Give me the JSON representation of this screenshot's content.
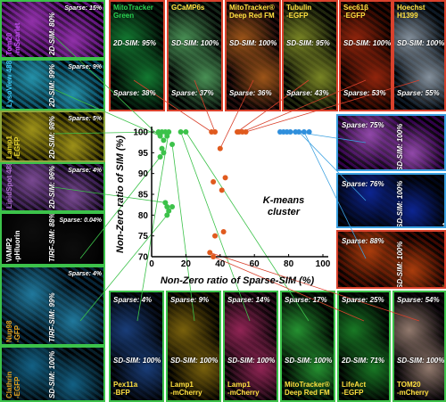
{
  "chart_data": {
    "type": "scatter",
    "xlabel": "Non-Zero ratio of Sparse-SIM (%)",
    "ylabel": "Non-Zero ratio of SIM (%)",
    "xlim": [
      0,
      100
    ],
    "ylim": [
      70,
      100
    ],
    "xticks": [
      "0",
      "20",
      "40",
      "60",
      "80",
      "100"
    ],
    "yticks": [
      "70",
      "75",
      "80",
      "85",
      "90",
      "95",
      "100"
    ],
    "annotation": "K-means cluster",
    "grid": false,
    "series": [
      {
        "color": "#3cc24a",
        "points": [
          [
            4,
            100
          ],
          [
            5,
            99
          ],
          [
            6,
            100
          ],
          [
            7,
            98
          ],
          [
            8,
            100
          ],
          [
            9,
            99
          ],
          [
            10,
            100
          ],
          [
            12,
            97
          ],
          [
            17,
            100
          ],
          [
            20,
            100
          ],
          [
            6,
            96
          ],
          [
            7,
            95
          ],
          [
            5,
            94
          ],
          [
            8,
            83
          ],
          [
            9,
            82
          ],
          [
            12,
            82
          ],
          [
            10,
            81
          ],
          [
            9,
            80
          ]
        ]
      },
      {
        "color": "#e05a1e",
        "points": [
          [
            35,
            100
          ],
          [
            37,
            100
          ],
          [
            40,
            96
          ],
          [
            36,
            88
          ],
          [
            43,
            89
          ],
          [
            41,
            86
          ],
          [
            42,
            76
          ],
          [
            37,
            75
          ],
          [
            34,
            71
          ],
          [
            36,
            70
          ],
          [
            50,
            100
          ],
          [
            51,
            100
          ],
          [
            53,
            100
          ],
          [
            55,
            100
          ]
        ]
      },
      {
        "color": "#2f8fdc",
        "points": [
          [
            75,
            100
          ],
          [
            77,
            100
          ],
          [
            79,
            100
          ],
          [
            81,
            100
          ],
          [
            84,
            100
          ],
          [
            86,
            100
          ],
          [
            89,
            100
          ],
          [
            92,
            100
          ]
        ]
      }
    ]
  },
  "tiles": {
    "t_mscarlet": {
      "name": "Tom20\n-mScarlet",
      "cap1": "2D-SIM: 80%",
      "cap2": "Sparse: 15%"
    },
    "t_lyso": {
      "name": "LysoView 488",
      "cap1": "2D-SIM: 99%",
      "cap2": "Sparse: 9%"
    },
    "t_lamp1": {
      "name": "Lamp1\n-EGFP",
      "cap1": "2D-SIM: 98%",
      "cap2": "Sparse: 5%"
    },
    "t_lipid": {
      "name": "LipidSpot 488",
      "cap1": "2D-SIM: 96%",
      "cap2": "Sparse: 4%"
    },
    "t_vamp": {
      "name": "VAMP2\n-pHluorin",
      "cap1": "TIRF-SIM: 88%",
      "cap2": "Sparse: 0.04%"
    },
    "t_nup": {
      "name": "Nup98\n-GFP",
      "cap1": "TIRF-SIM: 99%",
      "cap2": "Sparse: 4%"
    },
    "t_clathrin": {
      "name": "Clathrin\n-EGFP",
      "cap1": "SD-SIM: 100%",
      "cap2": ""
    },
    "t_mito": {
      "name": "MitoTracker\nGreen",
      "cap1": "2D-SIM: 95%",
      "cap2": "Sparse: 38%"
    },
    "t_gcamp": {
      "name": "GCaMP6s",
      "cap1": "SD-SIM: 100%",
      "cap2": "Sparse: 37%"
    },
    "t_mitodr": {
      "name": "MitoTracker®\nDeep Red FM",
      "cap1": "SD-SIM: 100%",
      "cap2": "Sparse: 36%"
    },
    "t_tubulin": {
      "name": "Tubulin\n-EGFP",
      "cap1": "SD-SIM: 95%",
      "cap2": "Sparse: 43%"
    },
    "t_sec": {
      "name": "Sec61β\n-EGFP",
      "cap1": "SD-SIM: 100%",
      "cap2": "Sparse: 53%"
    },
    "t_hoechst": {
      "name": "Hoechst\nH1399",
      "cap1": "SD-SIM: 100%",
      "cap2": "Sparse: 55%"
    },
    "r_tub": {
      "name": "Tubulin\n-EGFP",
      "cap1": "SD-SIM: 100%",
      "cap2": "Sparse: 75%"
    },
    "r_hoe": {
      "name": "Hoechst\nH1399",
      "cap1": "SD-SIM: 100%",
      "cap2": "Sparse: 76%"
    },
    "r_tubf": {
      "name": "Tubulin\n-EGFP",
      "cap1": "SD-SIM: 100%",
      "cap2": "Sparse: 88%"
    },
    "b_pex": {
      "name": "Pex11a\n-BFP",
      "cap1": "SD-SIM: 100%",
      "cap2": "Sparse: 4%"
    },
    "b_lamp": {
      "name": "Lamp1\n-mCherry",
      "cap1": "SD-SIM: 100%",
      "cap2": "Sparse: 9%"
    },
    "b_lampc": {
      "name": "Lamp1\n-mCherry",
      "cap1": "SD-SIM: 100%",
      "cap2": "Sparse: 14%"
    },
    "b_mitodr": {
      "name": "MitoTracker®\nDeep Red FM",
      "cap1": "SD-SIM: 100%",
      "cap2": "Sparse: 17%"
    },
    "b_life": {
      "name": "LifeAct\n-EGFP",
      "cap1": "2D-SIM: 71%",
      "cap2": "Sparse: 25%"
    },
    "b_tom": {
      "name": "TOM20\n-mCherry",
      "cap1": "SD-SIM: 100%",
      "cap2": "Sparse: 54%"
    }
  }
}
